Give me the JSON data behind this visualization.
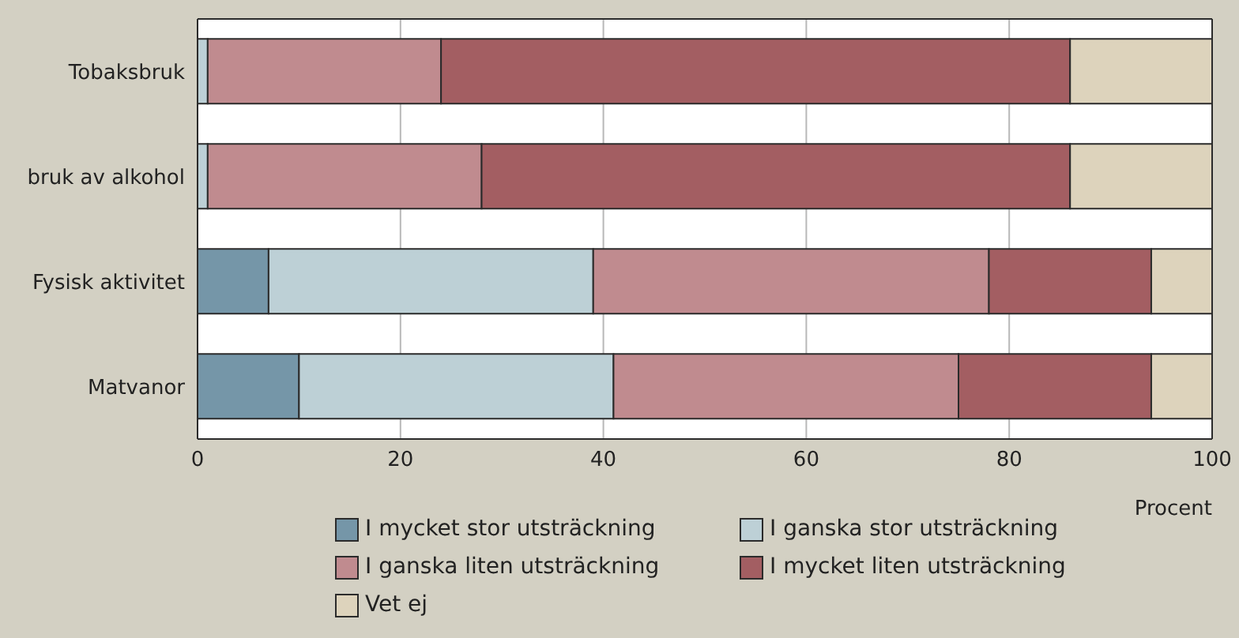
{
  "chart_data": {
    "type": "bar",
    "orientation": "horizontal",
    "stacked": true,
    "categories": [
      "Tobaksbruk",
      "bruk av alkohol",
      "Fysisk aktivitet",
      "Matvanor"
    ],
    "xlabel": "Procent",
    "xlim": [
      0,
      100
    ],
    "xticks": [
      0,
      20,
      40,
      60,
      80,
      100
    ],
    "grid": "x",
    "legend": "bottom",
    "series": [
      {
        "name": "I mycket stor utsträckning",
        "color": "#7596a8",
        "values": [
          0,
          0,
          7,
          10
        ]
      },
      {
        "name": "I ganska stor utsträckning",
        "color": "#bdd0d6",
        "values": [
          1,
          1,
          32,
          31
        ]
      },
      {
        "name": "I ganska liten utsträckning",
        "color": "#c08b8f",
        "values": [
          23,
          27,
          39,
          34
        ]
      },
      {
        "name": "I mycket liten utsträckning",
        "color": "#a35e62",
        "values": [
          62,
          58,
          16,
          19
        ]
      },
      {
        "name": "Vet ej",
        "color": "#ddd3bc",
        "values": [
          14,
          14,
          6,
          6
        ]
      }
    ]
  }
}
